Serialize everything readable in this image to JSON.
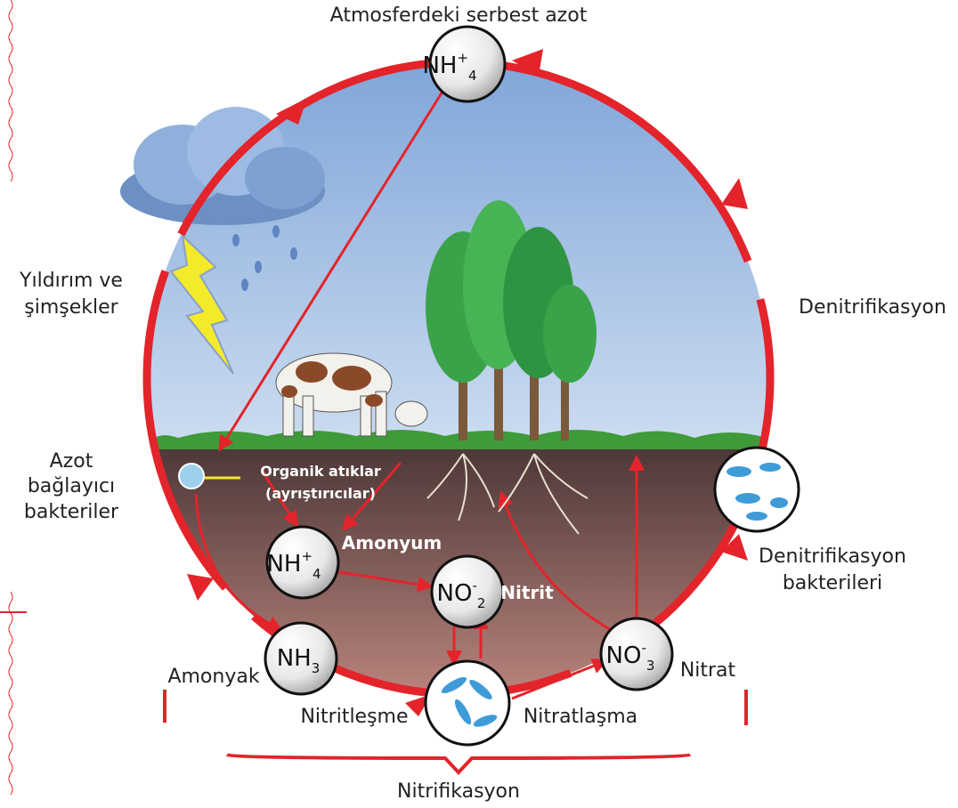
{
  "title": "Atmosferdeki serbest azot",
  "labels": {
    "lightning": [
      "Yıldırım ve",
      "şimşekler"
    ],
    "denitrification": "Denitrifikasyon",
    "fixing_bacteria": [
      "Azot",
      "bağlayıcı",
      "bakteriler"
    ],
    "organic_waste": [
      "Organik atıklar",
      "(ayrıştırıcılar)"
    ],
    "ammonium": "Amonyum",
    "nitrite": "Nitrit",
    "denitrification_bacteria": [
      "Denitrifikasyon",
      "bakterileri"
    ],
    "ammonia": "Amonyak",
    "nitrate": "Nitrat",
    "nitritation": "Nitritleşme",
    "nitratation": "Nitratlaşma",
    "nitrification": "Nitrifikasyon"
  },
  "nodes": [
    {
      "base": "NH",
      "sup": "+",
      "sub": "4"
    },
    {
      "base": "NH",
      "sup": "+",
      "sub": "4"
    },
    {
      "base": "NO",
      "sup": "-",
      "sub": "2"
    },
    {
      "base": "NH",
      "sub": "3"
    },
    {
      "base": "NO",
      "sup": "-",
      "sub": "3"
    }
  ]
}
